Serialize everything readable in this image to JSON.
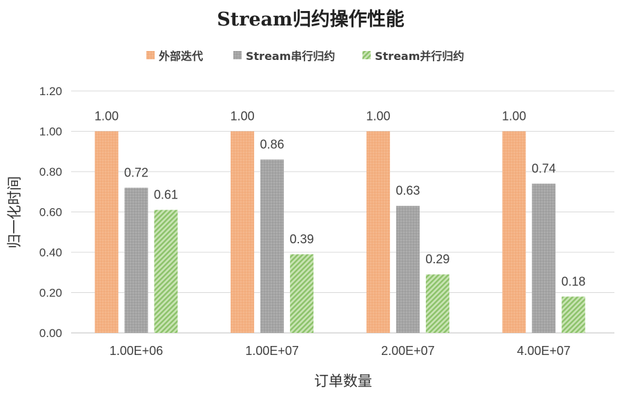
{
  "chart_data": {
    "type": "bar",
    "title": "Stream归约操作性能",
    "xlabel": "订单数量",
    "ylabel": "归一化时间",
    "categories": [
      "1.00E+06",
      "1.00E+07",
      "2.00E+07",
      "4.00E+07"
    ],
    "series": [
      {
        "name": "外部迭代",
        "values": [
          1.0,
          1.0,
          1.0,
          1.0
        ],
        "color": "#f4b183"
      },
      {
        "name": "Stream串行归约",
        "values": [
          0.72,
          0.86,
          0.63,
          0.74
        ],
        "color": "#a5a5a5"
      },
      {
        "name": "Stream并行归约",
        "values": [
          0.61,
          0.39,
          0.29,
          0.18
        ],
        "color": "#a9d18e"
      }
    ],
    "ylim": [
      0,
      1.2
    ],
    "yticks": [
      "0.00",
      "0.20",
      "0.40",
      "0.60",
      "0.80",
      "1.00",
      "1.20"
    ],
    "grid": true,
    "legend_position": "top"
  }
}
